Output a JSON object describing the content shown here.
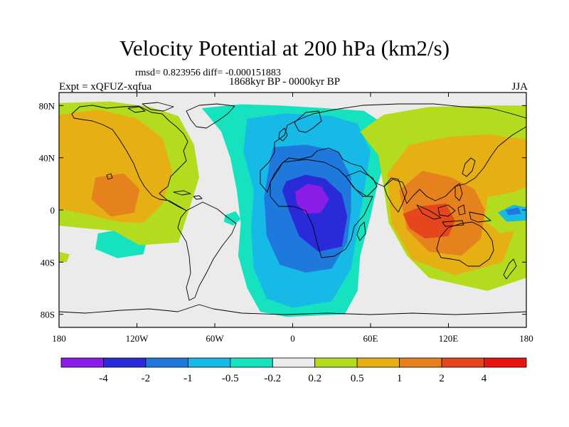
{
  "chart_data": {
    "type": "heatmap",
    "title": "Velocity Potential at 200 hPa (km2/s)",
    "stats_text": "rmsd= 0.823956 diff= -0.000151883",
    "subtitle": "1868kyr BP - 0000kyr BP",
    "left_label": "Expt = xQFUZ-xqfua",
    "right_label": "JJA",
    "x_range": [
      -180,
      180
    ],
    "y_range": [
      -90,
      90
    ],
    "x_ticks": [
      {
        "value": -180,
        "label": "180"
      },
      {
        "value": -120,
        "label": "120W"
      },
      {
        "value": -60,
        "label": "60W"
      },
      {
        "value": 0,
        "label": "0"
      },
      {
        "value": 60,
        "label": "60E"
      },
      {
        "value": 120,
        "label": "120E"
      },
      {
        "value": 180,
        "label": "180"
      }
    ],
    "y_ticks": [
      {
        "value": 80,
        "label": "80N"
      },
      {
        "value": 40,
        "label": "40N"
      },
      {
        "value": 0,
        "label": "0"
      },
      {
        "value": -40,
        "label": "40S"
      },
      {
        "value": -80,
        "label": "80S"
      }
    ],
    "colorbar": {
      "levels": [
        "-4",
        "-2",
        "-1",
        "-0.5",
        "-0.2",
        "0.2",
        "0.5",
        "1",
        "2",
        "4"
      ],
      "colors": [
        "#8a1ee6",
        "#2a2ad8",
        "#1f78dc",
        "#17b9e6",
        "#17e2c0",
        "#ebebeb",
        "#b4dc1e",
        "#e6af14",
        "#e6821e",
        "#e6461e",
        "#e61414"
      ]
    },
    "field_regions": [
      {
        "level": 4,
        "polygon": [
          [
            -70,
            78
          ],
          [
            -40,
            81
          ],
          [
            -10,
            80
          ],
          [
            25,
            78
          ],
          [
            55,
            76
          ],
          [
            70,
            66
          ],
          [
            72,
            40
          ],
          [
            65,
            18
          ],
          [
            60,
            -5
          ],
          [
            52,
            -35
          ],
          [
            50,
            -62
          ],
          [
            40,
            -80
          ],
          [
            -5,
            -82
          ],
          [
            -25,
            -78
          ],
          [
            -35,
            -60
          ],
          [
            -42,
            -35
          ],
          [
            -40,
            -10
          ],
          [
            -43,
            15
          ],
          [
            -48,
            40
          ],
          [
            -55,
            60
          ]
        ]
      },
      {
        "level": 3,
        "polygon": [
          [
            -35,
            70
          ],
          [
            -5,
            74
          ],
          [
            30,
            72
          ],
          [
            50,
            66
          ],
          [
            60,
            45
          ],
          [
            55,
            15
          ],
          [
            50,
            -15
          ],
          [
            45,
            -45
          ],
          [
            30,
            -70
          ],
          [
            0,
            -75
          ],
          [
            -20,
            -68
          ],
          [
            -30,
            -45
          ],
          [
            -32,
            -15
          ],
          [
            -30,
            15
          ],
          [
            -38,
            45
          ]
        ]
      },
      {
        "level": 2,
        "polygon": [
          [
            -15,
            48
          ],
          [
            10,
            50
          ],
          [
            35,
            45
          ],
          [
            45,
            25
          ],
          [
            45,
            0
          ],
          [
            42,
            -25
          ],
          [
            30,
            -45
          ],
          [
            10,
            -48
          ],
          [
            -10,
            -42
          ],
          [
            -20,
            -20
          ],
          [
            -22,
            10
          ],
          [
            -18,
            35
          ]
        ]
      },
      {
        "level": 1,
        "polygon": [
          [
            -5,
            22
          ],
          [
            10,
            27
          ],
          [
            25,
            24
          ],
          [
            38,
            12
          ],
          [
            42,
            -5
          ],
          [
            38,
            -28
          ],
          [
            20,
            -32
          ],
          [
            5,
            -20
          ],
          [
            -3,
            0
          ],
          [
            -8,
            15
          ]
        ]
      },
      {
        "level": 0,
        "polygon": [
          [
            2,
            14
          ],
          [
            12,
            20
          ],
          [
            22,
            18
          ],
          [
            28,
            8
          ],
          [
            22,
            -2
          ],
          [
            10,
            -3
          ],
          [
            3,
            5
          ]
        ]
      },
      {
        "level": 4,
        "polygon": [
          [
            -52,
            -4
          ],
          [
            -44,
            -1
          ],
          [
            -40,
            -7
          ],
          [
            -46,
            -12
          ],
          [
            -53,
            -9
          ]
        ]
      },
      {
        "level": 4,
        "polygon": [
          [
            -150,
            -18
          ],
          [
            -128,
            -14
          ],
          [
            -112,
            -22
          ],
          [
            -115,
            -34
          ],
          [
            -135,
            -37
          ],
          [
            -152,
            -30
          ]
        ]
      },
      {
        "level": 4,
        "polygon": [
          [
            -176,
            6
          ],
          [
            -168,
            6
          ],
          [
            -166,
            -1
          ],
          [
            -176,
            -3
          ]
        ]
      },
      {
        "level": 6,
        "polygon": [
          [
            -180,
            82
          ],
          [
            -140,
            83
          ],
          [
            -110,
            79
          ],
          [
            -88,
            72
          ],
          [
            -76,
            50
          ],
          [
            -72,
            25
          ],
          [
            -80,
            0
          ],
          [
            -88,
            -25
          ],
          [
            -118,
            -27
          ],
          [
            -138,
            -16
          ],
          [
            -160,
            -14
          ],
          [
            -180,
            -12
          ]
        ]
      },
      {
        "level": 6,
        "polygon": [
          [
            52,
            60
          ],
          [
            70,
            73
          ],
          [
            105,
            79
          ],
          [
            150,
            80
          ],
          [
            180,
            80
          ],
          [
            180,
            -52
          ],
          [
            150,
            -62
          ],
          [
            105,
            -52
          ],
          [
            88,
            -35
          ],
          [
            74,
            -10
          ],
          [
            70,
            18
          ],
          [
            66,
            42
          ]
        ]
      },
      {
        "level": 7,
        "polygon": [
          [
            -180,
            73
          ],
          [
            -150,
            77
          ],
          [
            -120,
            70
          ],
          [
            -100,
            55
          ],
          [
            -93,
            30
          ],
          [
            -100,
            5
          ],
          [
            -115,
            -10
          ],
          [
            -135,
            -9
          ],
          [
            -160,
            -3
          ],
          [
            -180,
            1
          ]
        ]
      },
      {
        "level": 7,
        "polygon": [
          [
            73,
            28
          ],
          [
            90,
            50
          ],
          [
            120,
            56
          ],
          [
            150,
            58
          ],
          [
            180,
            54
          ],
          [
            180,
            18
          ],
          [
            163,
            10
          ],
          [
            172,
            -12
          ],
          [
            162,
            -40
          ],
          [
            125,
            -50
          ],
          [
            92,
            -38
          ],
          [
            76,
            -10
          ]
        ]
      },
      {
        "level": 8,
        "polygon": [
          [
            -152,
            25
          ],
          [
            -130,
            28
          ],
          [
            -118,
            16
          ],
          [
            -122,
            -2
          ],
          [
            -140,
            -5
          ],
          [
            -155,
            8
          ]
        ]
      },
      {
        "level": 8,
        "polygon": [
          [
            82,
            15
          ],
          [
            100,
            30
          ],
          [
            122,
            25
          ],
          [
            140,
            16
          ],
          [
            148,
            0
          ],
          [
            145,
            -22
          ],
          [
            130,
            -35
          ],
          [
            105,
            -32
          ],
          [
            88,
            -15
          ]
        ]
      },
      {
        "level": 9,
        "polygon": [
          [
            85,
            -3
          ],
          [
            100,
            3
          ],
          [
            118,
            5
          ],
          [
            125,
            -8
          ],
          [
            120,
            -20
          ],
          [
            102,
            -22
          ],
          [
            90,
            -14
          ]
        ]
      },
      {
        "level": 6,
        "polygon": [
          [
            150,
            10
          ],
          [
            172,
            14
          ],
          [
            180,
            8
          ],
          [
            180,
            -14
          ],
          [
            160,
            -18
          ],
          [
            148,
            -8
          ]
        ]
      },
      {
        "level": 3,
        "polygon": [
          [
            158,
            -2
          ],
          [
            170,
            4
          ],
          [
            180,
            2
          ],
          [
            180,
            -8
          ],
          [
            165,
            -9
          ]
        ]
      },
      {
        "level": 2,
        "polygon": [
          [
            164,
            0
          ],
          [
            174,
            2
          ],
          [
            176,
            -3
          ],
          [
            166,
            -4
          ]
        ]
      },
      {
        "level": 6,
        "polygon": [
          [
            -180,
            -32
          ],
          [
            -172,
            -34
          ],
          [
            -174,
            -40
          ],
          [
            -180,
            -40
          ]
        ]
      }
    ]
  }
}
